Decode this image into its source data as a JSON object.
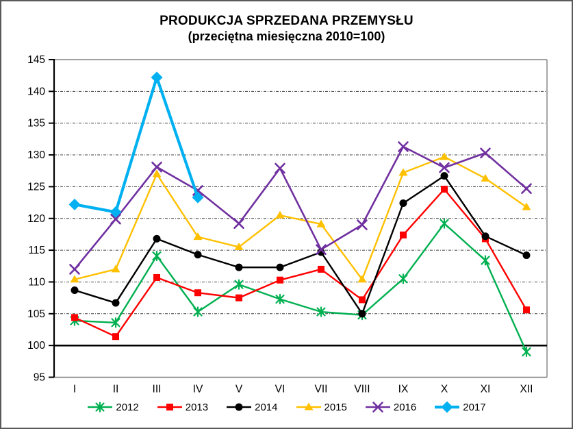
{
  "chart_data": {
    "type": "line",
    "title": "PRODUKCJA SPRZEDANA PRZEMYSŁU",
    "subtitle": "(przeciętna miesięczna 2010=100)",
    "categories": [
      "I",
      "II",
      "III",
      "IV",
      "V",
      "VI",
      "VII",
      "VIII",
      "IX",
      "X",
      "XI",
      "XII"
    ],
    "xlabel": "",
    "ylabel": "",
    "ylim": [
      95,
      145
    ],
    "yticks": [
      95,
      100,
      105,
      110,
      115,
      120,
      125,
      130,
      135,
      140,
      145
    ],
    "baseline_value": 100,
    "grid": "horizontal-dashed",
    "legend_position": "bottom",
    "axis_color": "#000000",
    "frame_color": "#808080",
    "series": [
      {
        "name": "2012",
        "color": "#00B050",
        "marker": "star",
        "line_width": 2.4,
        "values": [
          103.9,
          103.6,
          114.1,
          105.3,
          109.6,
          107.3,
          105.3,
          104.8,
          110.5,
          119.2,
          113.4,
          99.0
        ]
      },
      {
        "name": "2013",
        "color": "#FF0000",
        "marker": "square",
        "line_width": 2.4,
        "values": [
          104.4,
          101.4,
          110.7,
          108.3,
          107.5,
          110.3,
          112.0,
          107.2,
          117.4,
          124.6,
          116.8,
          105.6
        ]
      },
      {
        "name": "2014",
        "color": "#000000",
        "marker": "circle",
        "line_width": 2.4,
        "values": [
          108.7,
          106.7,
          116.8,
          114.3,
          112.3,
          112.3,
          114.7,
          105.0,
          122.4,
          126.7,
          117.2,
          114.2
        ]
      },
      {
        "name": "2015",
        "color": "#FFC000",
        "marker": "triangle",
        "line_width": 2.4,
        "values": [
          110.4,
          112.0,
          127.0,
          117.1,
          115.5,
          120.5,
          119.1,
          110.4,
          127.2,
          129.7,
          126.3,
          121.8
        ]
      },
      {
        "name": "2016",
        "color": "#7030A0",
        "marker": "x",
        "line_width": 2.6,
        "values": [
          112.0,
          119.9,
          128.1,
          124.4,
          119.2,
          127.9,
          115.1,
          119.0,
          131.3,
          128.0,
          130.3,
          124.7
        ]
      },
      {
        "name": "2017",
        "color": "#00B0F0",
        "marker": "diamond",
        "line_width": 4.2,
        "values": [
          122.2,
          121.0,
          142.2,
          123.3
        ]
      }
    ]
  }
}
